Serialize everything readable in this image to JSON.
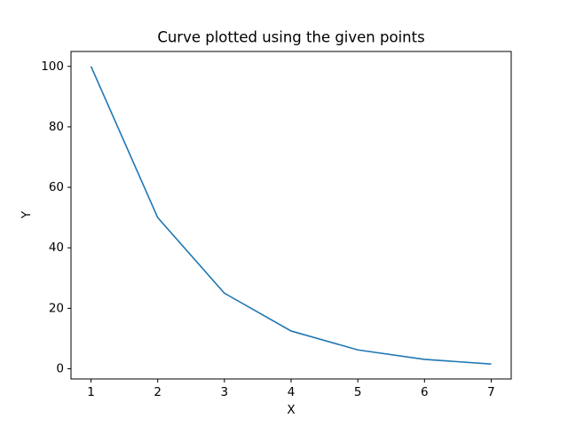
{
  "chart_data": {
    "type": "line",
    "title": "Curve plotted using the given points",
    "x_label": "X",
    "y_label": "Y",
    "x": [
      1,
      2,
      3,
      4,
      5,
      6,
      7
    ],
    "series": [
      {
        "name": "Y",
        "color": "#1f77b4",
        "values": [
          100,
          50,
          25,
          12.5,
          6.25,
          3.125,
          1.5625
        ]
      }
    ],
    "xlim": [
      0.7,
      7.3
    ],
    "ylim": [
      -3.36,
      104.92
    ],
    "xticks": [
      1,
      2,
      3,
      4,
      5,
      6,
      7
    ],
    "yticks": [
      0,
      20,
      40,
      60,
      80,
      100
    ],
    "grid": false,
    "legend": false
  }
}
